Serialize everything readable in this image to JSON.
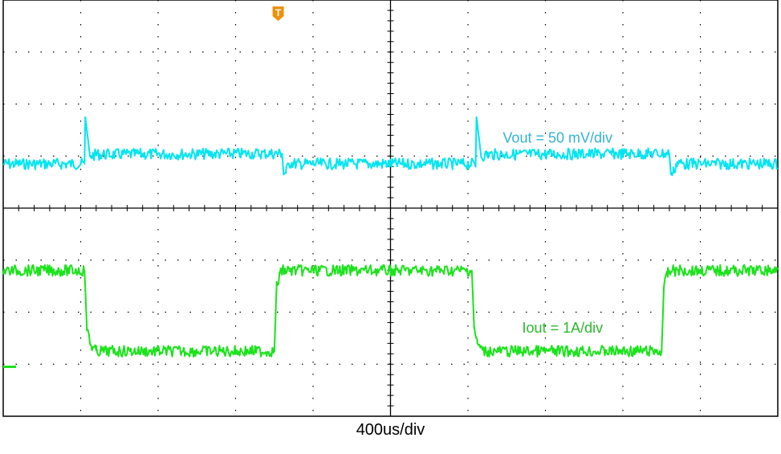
{
  "chart_data": {
    "type": "line",
    "title": "",
    "xlabel": "400us/div",
    "ylabel": "",
    "grid": true,
    "x_divisions": 10,
    "y_divisions": 8,
    "trigger_marker": "T",
    "trigger_icon": "trigger-marker-icon",
    "background_color": "#ffffff",
    "grid_color": "#000000",
    "series": [
      {
        "name": "Vout = 50 mV/div",
        "color": "#00e5f0",
        "label_color": "#32b4cf",
        "unit": "div",
        "x": [
          0,
          1.05,
          1.06,
          1.12,
          1.2,
          3.6,
          3.62,
          3.65,
          3.7,
          3.8,
          5.0,
          6.1,
          6.11,
          6.17,
          6.25,
          8.6,
          8.62,
          8.65,
          8.7,
          8.8,
          10.0
        ],
        "y": [
          0.85,
          0.85,
          1.75,
          1.0,
          1.03,
          1.05,
          0.65,
          0.7,
          0.87,
          0.85,
          0.85,
          0.85,
          1.75,
          1.0,
          1.03,
          1.05,
          0.65,
          0.7,
          0.87,
          0.85,
          0.85
        ]
      },
      {
        "name": "Iout = 1A/div",
        "color": "#1be31b",
        "label_color": "#2db82d",
        "unit": "div",
        "x": [
          0,
          1.05,
          1.08,
          1.12,
          1.2,
          3.5,
          3.53,
          3.58,
          3.6,
          6.05,
          6.08,
          6.12,
          6.2,
          8.5,
          8.53,
          8.58,
          8.6,
          10.0
        ],
        "y": [
          -1.2,
          -1.2,
          -2.3,
          -2.6,
          -2.75,
          -2.75,
          -1.5,
          -1.25,
          -1.2,
          -1.2,
          -2.3,
          -2.6,
          -2.75,
          -2.75,
          -1.5,
          -1.25,
          -1.2,
          -1.2
        ]
      }
    ],
    "xlim": [
      0,
      10
    ],
    "ylim": [
      -4,
      4
    ],
    "ground_marker_color": "#1be31b"
  }
}
